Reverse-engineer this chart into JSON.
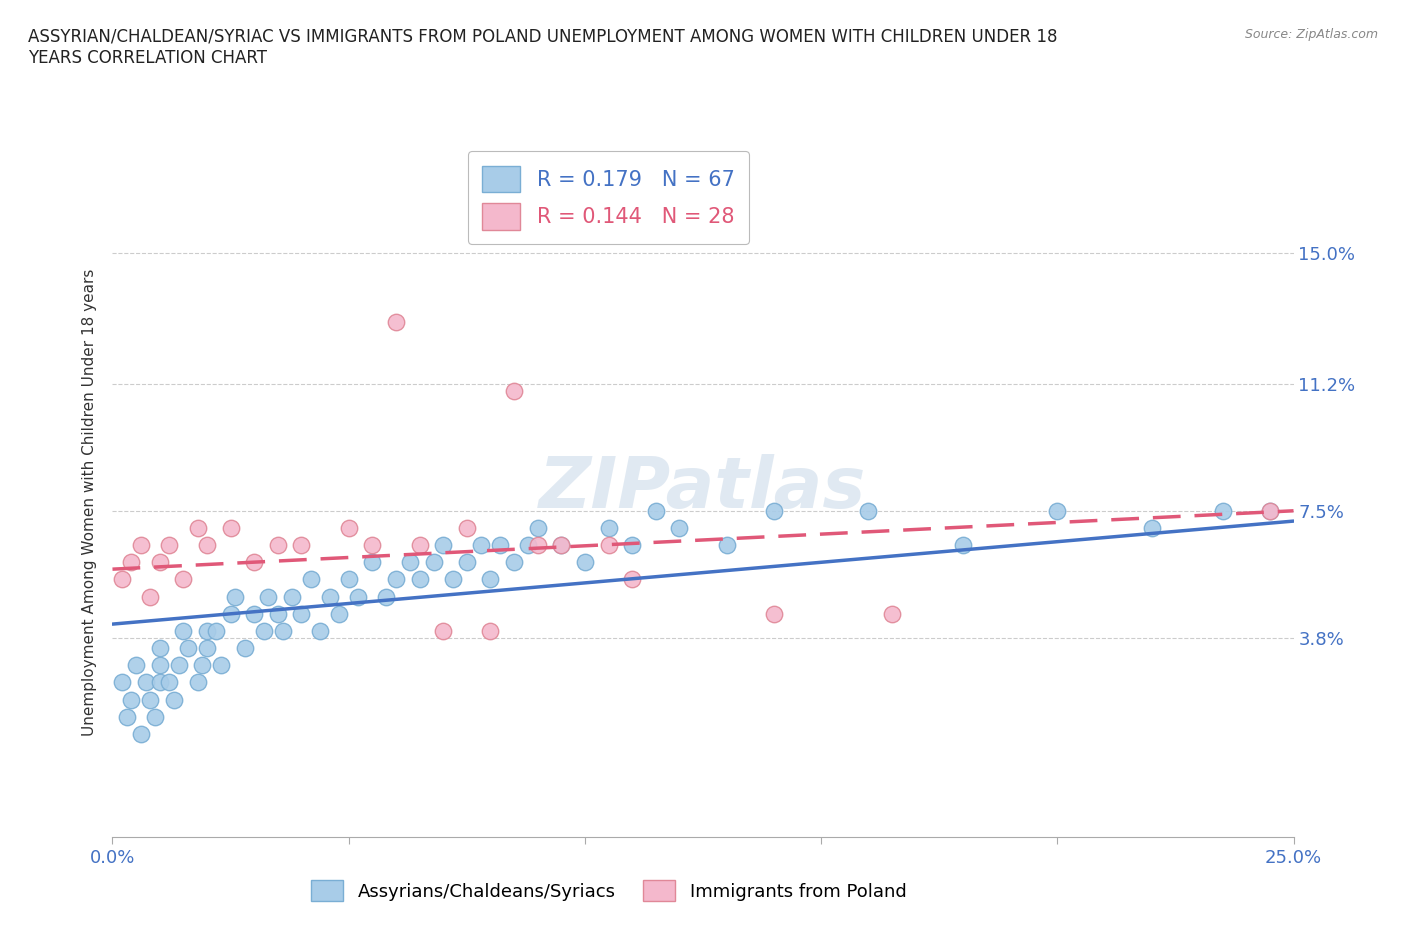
{
  "title": "ASSYRIAN/CHALDEAN/SYRIAC VS IMMIGRANTS FROM POLAND UNEMPLOYMENT AMONG WOMEN WITH CHILDREN UNDER 18\nYEARS CORRELATION CHART",
  "source": "Source: ZipAtlas.com",
  "xlabel": "",
  "ylabel": "Unemployment Among Women with Children Under 18 years",
  "xlim": [
    0.0,
    0.25
  ],
  "ylim": [
    -0.02,
    0.175
  ],
  "yticks": [
    0.038,
    0.075,
    0.112,
    0.15
  ],
  "ytick_labels": [
    "3.8%",
    "7.5%",
    "11.2%",
    "15.0%"
  ],
  "xticks": [
    0.0,
    0.05,
    0.1,
    0.15,
    0.2,
    0.25
  ],
  "xtick_labels": [
    "0.0%",
    "",
    "",
    "",
    "",
    "25.0%"
  ],
  "series1_color": "#a8cce8",
  "series1_edge": "#7aaed4",
  "series1_line_color": "#4472c4",
  "series2_color": "#f4b8cc",
  "series2_edge": "#e08898",
  "series2_line_color": "#e05878",
  "R1": 0.179,
  "N1": 67,
  "R2": 0.144,
  "N2": 28,
  "legend_label1": "Assyrians/Chaldeans/Syriacs",
  "legend_label2": "Immigrants from Poland",
  "watermark": "ZIPatlas",
  "series1_x": [
    0.002,
    0.003,
    0.004,
    0.005,
    0.006,
    0.007,
    0.008,
    0.009,
    0.01,
    0.01,
    0.01,
    0.012,
    0.013,
    0.014,
    0.015,
    0.016,
    0.018,
    0.019,
    0.02,
    0.02,
    0.022,
    0.023,
    0.025,
    0.026,
    0.028,
    0.03,
    0.032,
    0.033,
    0.035,
    0.036,
    0.038,
    0.04,
    0.042,
    0.044,
    0.046,
    0.048,
    0.05,
    0.052,
    0.055,
    0.058,
    0.06,
    0.063,
    0.065,
    0.068,
    0.07,
    0.072,
    0.075,
    0.078,
    0.08,
    0.082,
    0.085,
    0.088,
    0.09,
    0.095,
    0.1,
    0.105,
    0.11,
    0.115,
    0.12,
    0.13,
    0.14,
    0.16,
    0.18,
    0.2,
    0.22,
    0.235,
    0.245
  ],
  "series1_y": [
    0.025,
    0.015,
    0.02,
    0.03,
    0.01,
    0.025,
    0.02,
    0.015,
    0.03,
    0.025,
    0.035,
    0.025,
    0.02,
    0.03,
    0.04,
    0.035,
    0.025,
    0.03,
    0.04,
    0.035,
    0.04,
    0.03,
    0.045,
    0.05,
    0.035,
    0.045,
    0.04,
    0.05,
    0.045,
    0.04,
    0.05,
    0.045,
    0.055,
    0.04,
    0.05,
    0.045,
    0.055,
    0.05,
    0.06,
    0.05,
    0.055,
    0.06,
    0.055,
    0.06,
    0.065,
    0.055,
    0.06,
    0.065,
    0.055,
    0.065,
    0.06,
    0.065,
    0.07,
    0.065,
    0.06,
    0.07,
    0.065,
    0.075,
    0.07,
    0.065,
    0.075,
    0.075,
    0.065,
    0.075,
    0.07,
    0.075,
    0.075
  ],
  "series2_x": [
    0.002,
    0.004,
    0.006,
    0.008,
    0.01,
    0.012,
    0.015,
    0.018,
    0.02,
    0.025,
    0.03,
    0.035,
    0.04,
    0.05,
    0.055,
    0.06,
    0.065,
    0.07,
    0.075,
    0.08,
    0.085,
    0.09,
    0.095,
    0.105,
    0.11,
    0.14,
    0.165,
    0.245
  ],
  "series2_y": [
    0.055,
    0.06,
    0.065,
    0.05,
    0.06,
    0.065,
    0.055,
    0.07,
    0.065,
    0.07,
    0.06,
    0.065,
    0.065,
    0.07,
    0.065,
    0.13,
    0.065,
    0.04,
    0.07,
    0.04,
    0.11,
    0.065,
    0.065,
    0.065,
    0.055,
    0.045,
    0.045,
    0.075
  ],
  "trend1_x0": 0.0,
  "trend1_y0": 0.042,
  "trend1_x1": 0.25,
  "trend1_y1": 0.072,
  "trend2_x0": 0.0,
  "trend2_y0": 0.058,
  "trend2_x1": 0.25,
  "trend2_y1": 0.075
}
